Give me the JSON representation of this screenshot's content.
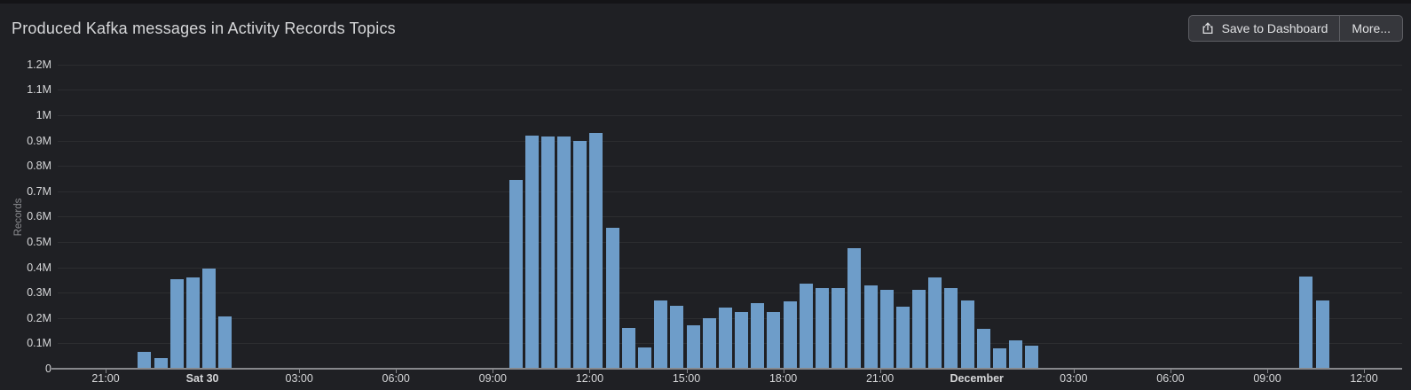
{
  "header": {
    "title": "Produced Kafka messages in Activity Records Topics"
  },
  "toolbar": {
    "save_label": "Save to Dashboard",
    "more_label": "More...",
    "save_icon": "export-icon"
  },
  "colors": {
    "bar": "#6e9dc9",
    "panel_background": "#1f2024",
    "axis": "#87888c",
    "gridline": "#2c2d30",
    "text": "#d5d6d8"
  },
  "chart_data": {
    "type": "bar",
    "title": "Produced Kafka messages in Activity Records Topics",
    "xlabel": "",
    "ylabel": "Records",
    "ylim": [
      0,
      1200000
    ],
    "bucket_minutes": 30,
    "grid": "horizontal",
    "legend": "none",
    "y_ticks": [
      {
        "label": "0",
        "value": 0
      },
      {
        "label": "0.1M",
        "value": 100000
      },
      {
        "label": "0.2M",
        "value": 200000
      },
      {
        "label": "0.3M",
        "value": 300000
      },
      {
        "label": "0.4M",
        "value": 400000
      },
      {
        "label": "0.5M",
        "value": 500000
      },
      {
        "label": "0.6M",
        "value": 600000
      },
      {
        "label": "0.7M",
        "value": 700000
      },
      {
        "label": "0.8M",
        "value": 800000
      },
      {
        "label": "0.9M",
        "value": 900000
      },
      {
        "label": "1M",
        "value": 1000000
      },
      {
        "label": "1.1M",
        "value": 1100000
      },
      {
        "label": "1.2M",
        "value": 1200000
      }
    ],
    "x_ticks": [
      {
        "label": "21:00",
        "offset_hours": 0,
        "day_boundary": false
      },
      {
        "label": "Sat 30",
        "offset_hours": 3,
        "day_boundary": true
      },
      {
        "label": "03:00",
        "offset_hours": 6,
        "day_boundary": false
      },
      {
        "label": "06:00",
        "offset_hours": 9,
        "day_boundary": false
      },
      {
        "label": "09:00",
        "offset_hours": 12,
        "day_boundary": false
      },
      {
        "label": "12:00",
        "offset_hours": 15,
        "day_boundary": false
      },
      {
        "label": "15:00",
        "offset_hours": 18,
        "day_boundary": false
      },
      {
        "label": "18:00",
        "offset_hours": 21,
        "day_boundary": false
      },
      {
        "label": "21:00",
        "offset_hours": 24,
        "day_boundary": false
      },
      {
        "label": "December",
        "offset_hours": 27,
        "day_boundary": true
      },
      {
        "label": "03:00",
        "offset_hours": 30,
        "day_boundary": false
      },
      {
        "label": "06:00",
        "offset_hours": 33,
        "day_boundary": false
      },
      {
        "label": "09:00",
        "offset_hours": 36,
        "day_boundary": false
      },
      {
        "label": "12:00",
        "offset_hours": 39,
        "day_boundary": false
      }
    ],
    "points": [
      {
        "time": "Nov 29 22:00",
        "offset_hours": 1.0,
        "records": 65000
      },
      {
        "time": "Nov 29 22:30",
        "offset_hours": 1.5,
        "records": 42000
      },
      {
        "time": "Nov 29 23:00",
        "offset_hours": 2.0,
        "records": 353000
      },
      {
        "time": "Nov 29 23:30",
        "offset_hours": 2.5,
        "records": 360000
      },
      {
        "time": "Nov 30 00:00",
        "offset_hours": 3.0,
        "records": 395000
      },
      {
        "time": "Nov 30 00:30",
        "offset_hours": 3.5,
        "records": 206000
      },
      {
        "time": "Nov 30 09:30",
        "offset_hours": 12.5,
        "records": 745000
      },
      {
        "time": "Nov 30 10:00",
        "offset_hours": 13.0,
        "records": 920000
      },
      {
        "time": "Nov 30 10:30",
        "offset_hours": 13.5,
        "records": 915000
      },
      {
        "time": "Nov 30 11:00",
        "offset_hours": 14.0,
        "records": 915000
      },
      {
        "time": "Nov 30 11:30",
        "offset_hours": 14.5,
        "records": 900000
      },
      {
        "time": "Nov 30 12:00",
        "offset_hours": 15.0,
        "records": 930000
      },
      {
        "time": "Nov 30 12:30",
        "offset_hours": 15.5,
        "records": 555000
      },
      {
        "time": "Nov 30 13:00",
        "offset_hours": 16.0,
        "records": 160000
      },
      {
        "time": "Nov 30 13:30",
        "offset_hours": 16.5,
        "records": 85000
      },
      {
        "time": "Nov 30 14:00",
        "offset_hours": 17.0,
        "records": 270000
      },
      {
        "time": "Nov 30 14:30",
        "offset_hours": 17.5,
        "records": 250000
      },
      {
        "time": "Nov 30 15:00",
        "offset_hours": 18.0,
        "records": 170000
      },
      {
        "time": "Nov 30 15:30",
        "offset_hours": 18.5,
        "records": 200000
      },
      {
        "time": "Nov 30 16:00",
        "offset_hours": 19.0,
        "records": 240000
      },
      {
        "time": "Nov 30 16:30",
        "offset_hours": 19.5,
        "records": 225000
      },
      {
        "time": "Nov 30 17:00",
        "offset_hours": 20.0,
        "records": 260000
      },
      {
        "time": "Nov 30 17:30",
        "offset_hours": 20.5,
        "records": 225000
      },
      {
        "time": "Nov 30 18:00",
        "offset_hours": 21.0,
        "records": 265000
      },
      {
        "time": "Nov 30 18:30",
        "offset_hours": 21.5,
        "records": 335000
      },
      {
        "time": "Nov 30 19:00",
        "offset_hours": 22.0,
        "records": 320000
      },
      {
        "time": "Nov 30 19:30",
        "offset_hours": 22.5,
        "records": 320000
      },
      {
        "time": "Nov 30 20:00",
        "offset_hours": 23.0,
        "records": 475000
      },
      {
        "time": "Nov 30 20:30",
        "offset_hours": 23.5,
        "records": 330000
      },
      {
        "time": "Nov 30 21:00",
        "offset_hours": 24.0,
        "records": 310000
      },
      {
        "time": "Nov 30 21:30",
        "offset_hours": 24.5,
        "records": 245000
      },
      {
        "time": "Nov 30 22:00",
        "offset_hours": 25.0,
        "records": 310000
      },
      {
        "time": "Nov 30 22:30",
        "offset_hours": 25.5,
        "records": 360000
      },
      {
        "time": "Nov 30 23:00",
        "offset_hours": 26.0,
        "records": 320000
      },
      {
        "time": "Nov 30 23:30",
        "offset_hours": 26.5,
        "records": 270000
      },
      {
        "time": "Dec 1 00:00",
        "offset_hours": 27.0,
        "records": 158000
      },
      {
        "time": "Dec 1 00:30",
        "offset_hours": 27.5,
        "records": 80000
      },
      {
        "time": "Dec 1 01:00",
        "offset_hours": 28.0,
        "records": 112000
      },
      {
        "time": "Dec 1 01:30",
        "offset_hours": 28.5,
        "records": 92000
      },
      {
        "time": "Dec 1 10:00",
        "offset_hours": 37.0,
        "records": 365000
      },
      {
        "time": "Dec 1 10:30",
        "offset_hours": 37.5,
        "records": 270000
      }
    ]
  }
}
